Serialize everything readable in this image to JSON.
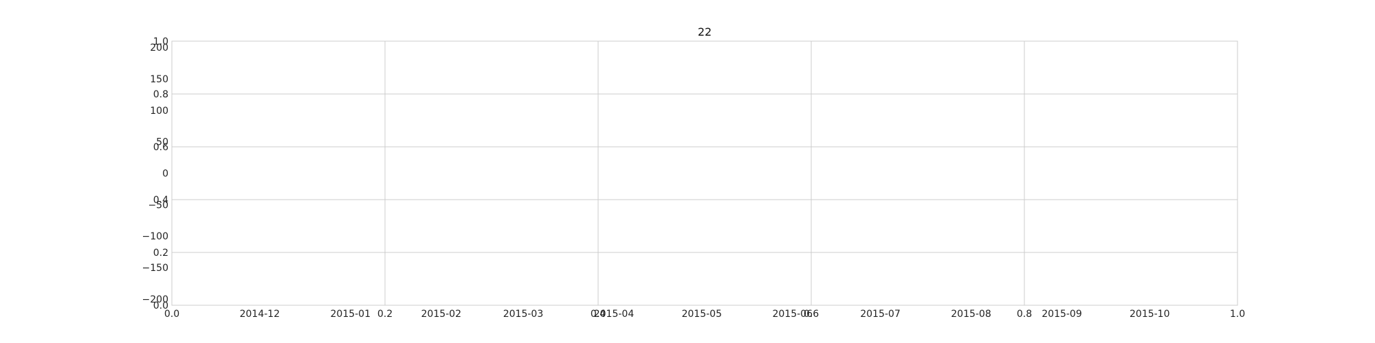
{
  "chart_data": {
    "type": "line",
    "title": "22",
    "xlabel": "",
    "ylabel": "",
    "grid": true,
    "series": [],
    "layers": [
      {
        "role": "underlying-axes",
        "xlim": [
          0.0,
          1.0
        ],
        "ylim": [
          0.0,
          1.0
        ],
        "x_ticks": [
          "0.0",
          "0.2",
          "0.4",
          "0.6",
          "0.8",
          "1.0"
        ],
        "y_ticks": [
          "0.0",
          "0.2",
          "0.4",
          "0.6",
          "0.8",
          "1.0"
        ]
      },
      {
        "role": "overlay-axes",
        "x_axis_type": "date",
        "xlim": [
          "2014-11-01",
          "2015-10-31"
        ],
        "ylim": [
          -210,
          210
        ],
        "x_ticks": [
          {
            "label": "2014-12",
            "value": "2014-12-01"
          },
          {
            "label": "2015-01",
            "value": "2015-01-01"
          },
          {
            "label": "2015-02",
            "value": "2015-02-01"
          },
          {
            "label": "2015-03",
            "value": "2015-03-01"
          },
          {
            "label": "2015-04",
            "value": "2015-04-01"
          },
          {
            "label": "2015-05",
            "value": "2015-05-01"
          },
          {
            "label": "2015-06",
            "value": "2015-06-01"
          },
          {
            "label": "2015-07",
            "value": "2015-07-01"
          },
          {
            "label": "2015-08",
            "value": "2015-08-01"
          },
          {
            "label": "2015-09",
            "value": "2015-09-01"
          },
          {
            "label": "2015-10",
            "value": "2015-10-01"
          }
        ],
        "y_ticks": [
          {
            "label": "200",
            "value": 200
          },
          {
            "label": "150",
            "value": 150
          },
          {
            "label": "100",
            "value": 100
          },
          {
            "label": "50",
            "value": 50
          },
          {
            "label": "0",
            "value": 0
          },
          {
            "label": "−50",
            "value": -50
          },
          {
            "label": "−100",
            "value": -100
          },
          {
            "label": "−150",
            "value": -150
          },
          {
            "label": "−200",
            "value": -200
          }
        ]
      }
    ]
  },
  "colors": {
    "grid": "#cccccc",
    "frame": "#cccccc",
    "text": "#222222"
  }
}
